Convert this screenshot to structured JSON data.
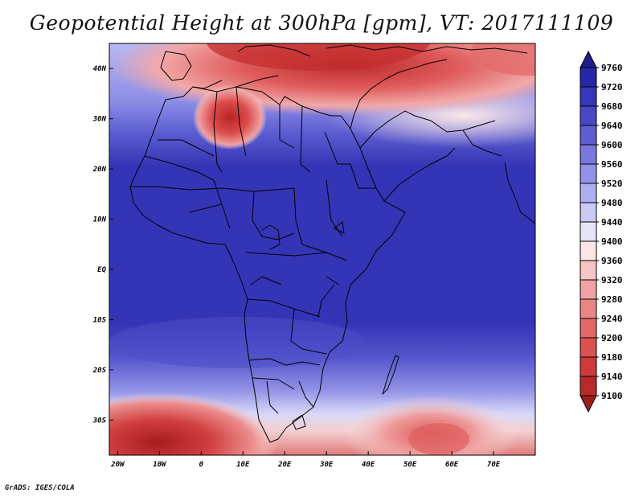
{
  "title": "Geopotential Height at 300hPa [gpm], VT: 2017111109",
  "footer": "GrADS: IGES/COLA",
  "map": {
    "lon_range": [
      -22,
      80
    ],
    "lat_range": [
      -37,
      45
    ],
    "lon_ticks": [
      "20W",
      "10W",
      "0",
      "10E",
      "20E",
      "30E",
      "40E",
      "50E",
      "60E",
      "70E"
    ],
    "lat_ticks": [
      "40N",
      "30N",
      "20N",
      "10N",
      "EQ",
      "10S",
      "20S",
      "30S"
    ]
  },
  "colorbar": {
    "levels": [
      "9100",
      "9140",
      "9180",
      "9200",
      "9240",
      "9280",
      "9320",
      "9360",
      "9400",
      "9440",
      "9480",
      "9520",
      "9560",
      "9600",
      "9640",
      "9680",
      "9720",
      "9760"
    ],
    "colors": [
      "#a01d1d",
      "#b82a2a",
      "#cf3a3a",
      "#dd5050",
      "#e36868",
      "#ea8585",
      "#f0a3a3",
      "#f6c6c6",
      "#fbe5e5",
      "#e5e5fa",
      "#c9c9f6",
      "#aeaef0",
      "#9292ea",
      "#7878e0",
      "#5e5ed2",
      "#4848c6",
      "#3636b8",
      "#2626a8",
      "#1d1d8e"
    ]
  }
}
